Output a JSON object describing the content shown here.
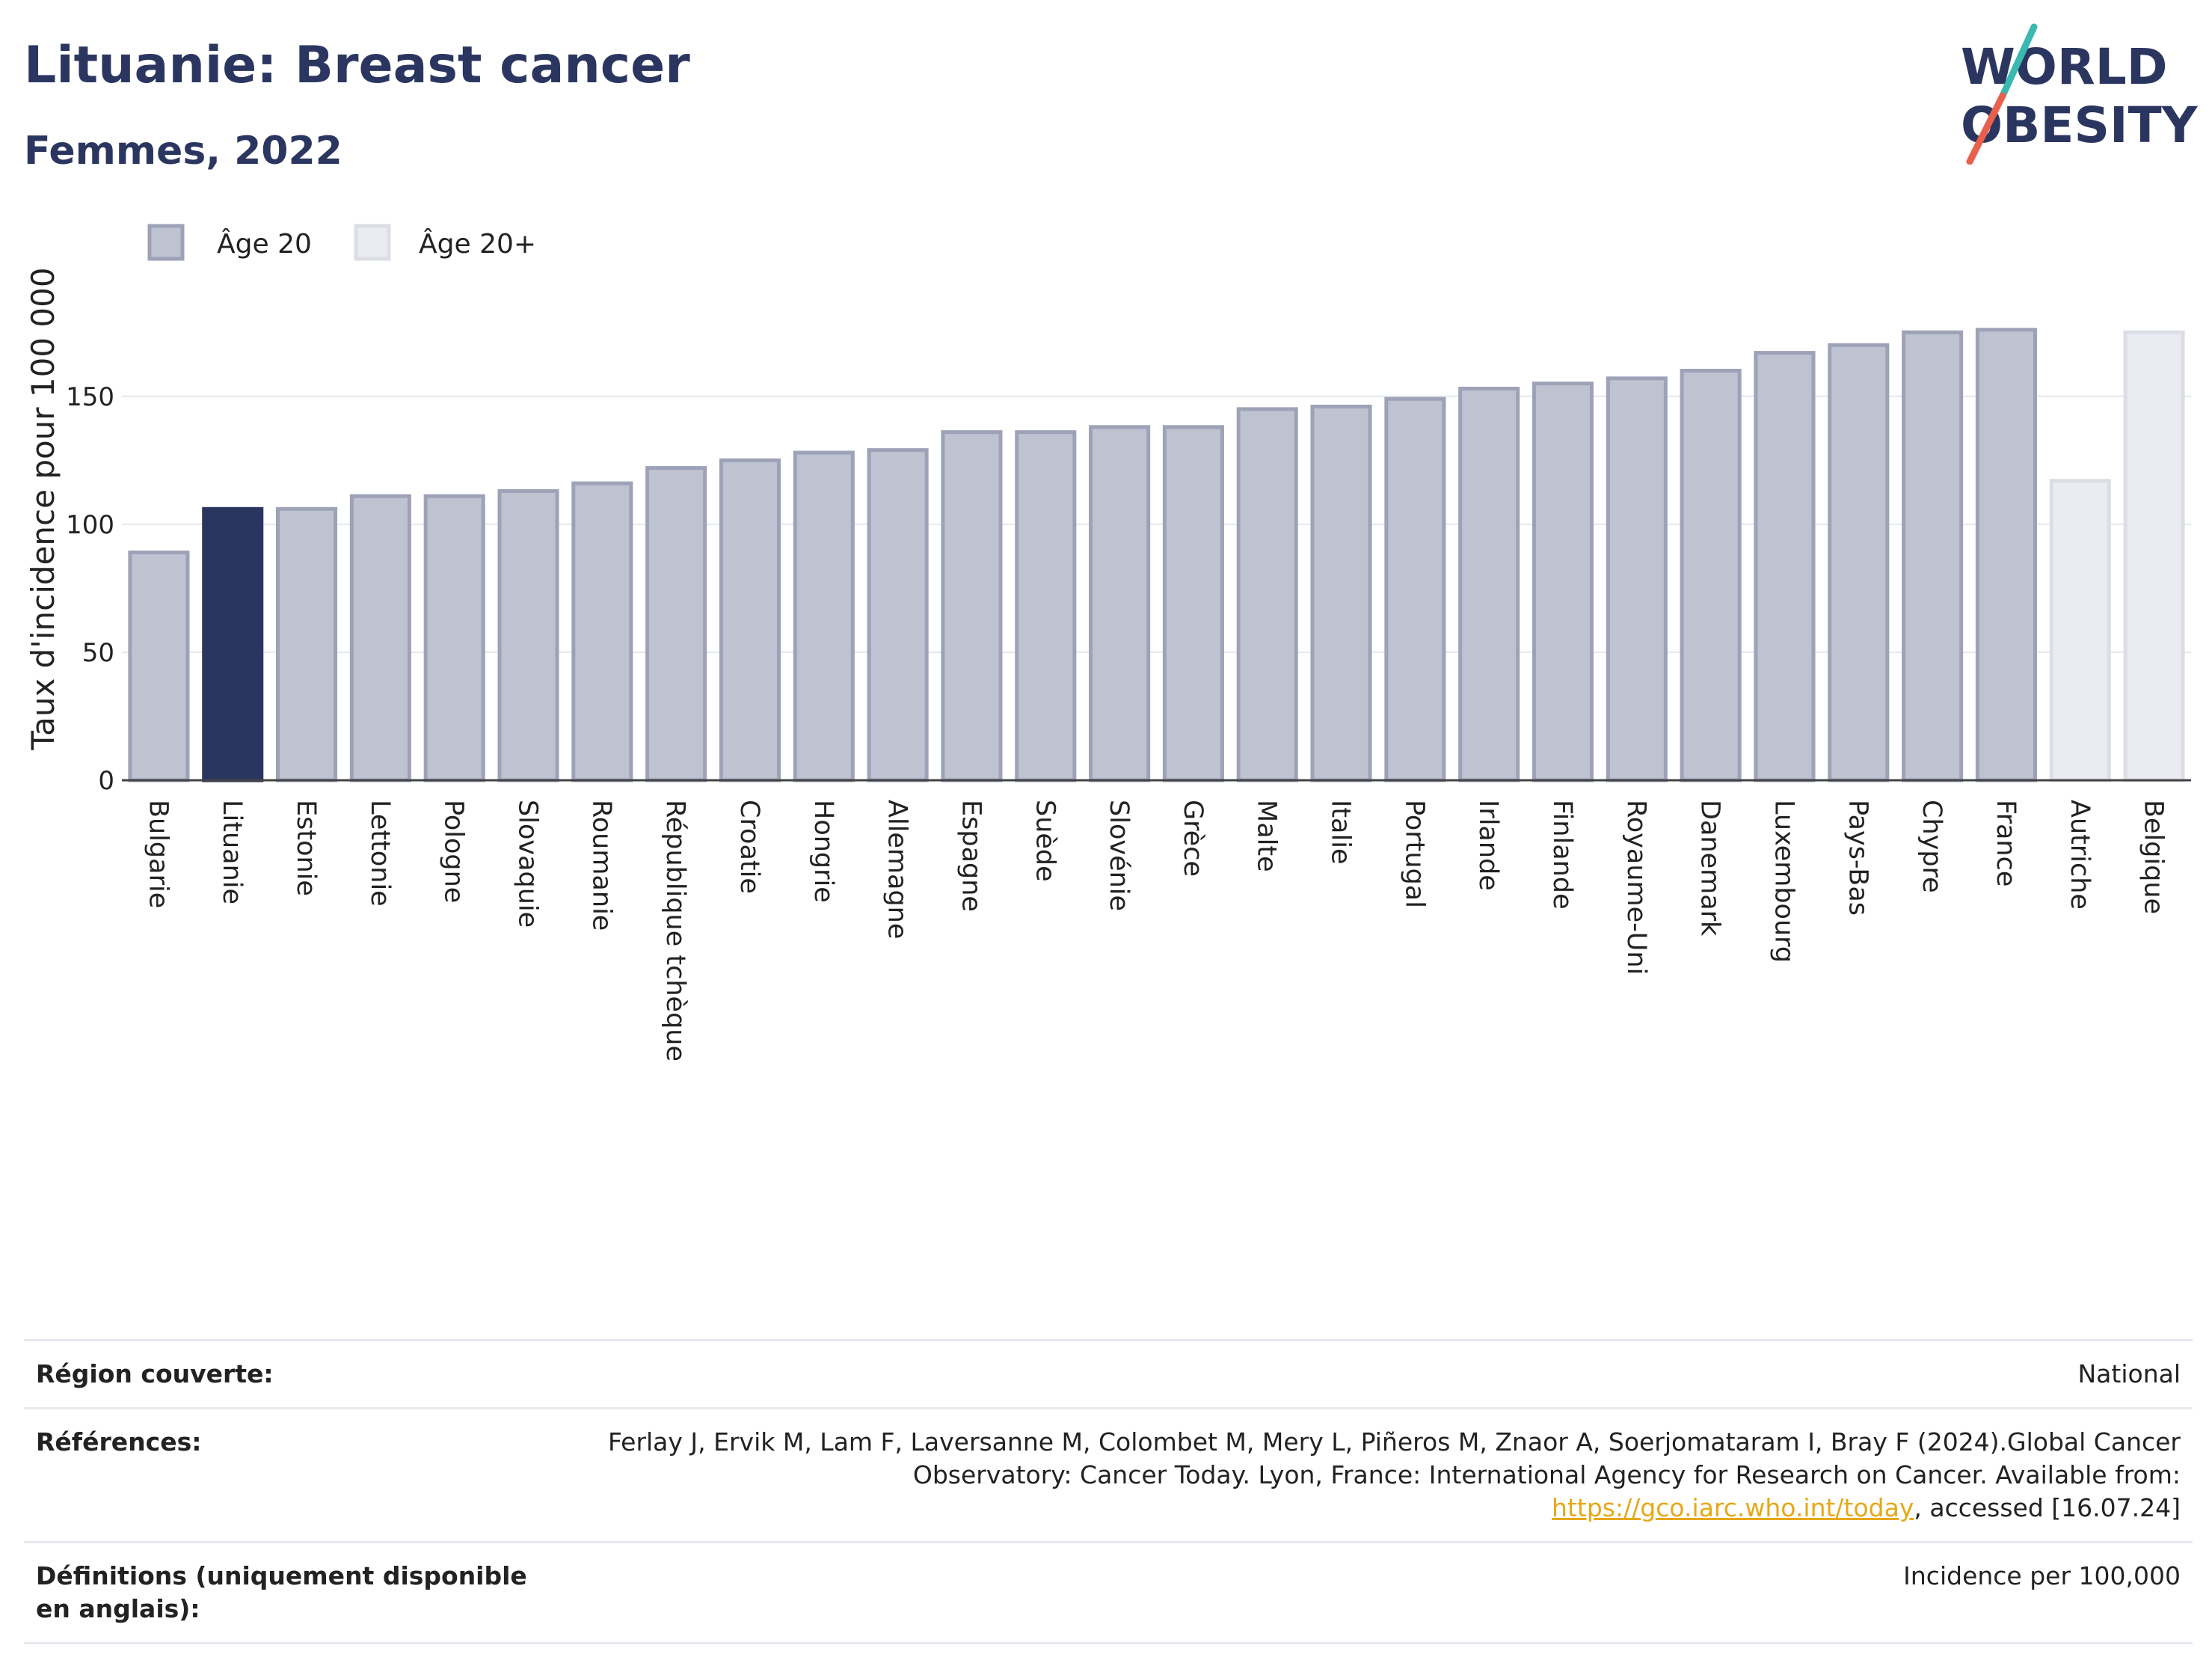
{
  "title": "Lituanie: Breast cancer",
  "subtitle": "Femmes, 2022",
  "logo": {
    "line1": "WORLD",
    "line2": "OBESITY"
  },
  "colors": {
    "age20_fill": "#bfc2d0",
    "age20_stroke": "#9da2b8",
    "highlight": "#2b3660",
    "age20plus_fill": "#ebecf1",
    "age20plus_stroke": "#dcdee6",
    "text_dark": "#2b3660",
    "link": "#e6a817"
  },
  "chart_data": {
    "type": "bar",
    "ylabel": "Taux d'incidence pour 100 000",
    "ylim": [
      0,
      185
    ],
    "yticks": [
      0,
      50,
      100,
      150
    ],
    "grid": true,
    "legend_position": "top-left",
    "highlight_category": "Lituanie",
    "legend": [
      {
        "name": "Âge 20",
        "series": "age20"
      },
      {
        "name": "Âge 20+",
        "series": "age20plus"
      }
    ],
    "categories": [
      "Bulgarie",
      "Lituanie",
      "Estonie",
      "Lettonie",
      "Pologne",
      "Slovaquie",
      "Roumanie",
      "République tchèque",
      "Croatie",
      "Hongrie",
      "Allemagne",
      "Espagne",
      "Suède",
      "Slovénie",
      "Grèce",
      "Malte",
      "Italie",
      "Portugal",
      "Irlande",
      "Finlande",
      "Royaume-Uni",
      "Danemark",
      "Luxembourg",
      "Pays-Bas",
      "Chypre",
      "France",
      "Autriche",
      "Belgique"
    ],
    "values": [
      89,
      106,
      106,
      111,
      111,
      113,
      116,
      122,
      125,
      128,
      129,
      136,
      136,
      138,
      138,
      145,
      146,
      149,
      153,
      155,
      157,
      160,
      167,
      170,
      175,
      176,
      117,
      175
    ],
    "series_of_category": [
      "age20",
      "age20",
      "age20",
      "age20",
      "age20",
      "age20",
      "age20",
      "age20",
      "age20",
      "age20",
      "age20",
      "age20",
      "age20",
      "age20",
      "age20",
      "age20",
      "age20",
      "age20",
      "age20",
      "age20",
      "age20",
      "age20",
      "age20",
      "age20",
      "age20",
      "age20",
      "age20plus",
      "age20plus"
    ]
  },
  "meta": {
    "region_label": "Région couverte:",
    "region_value": "National",
    "references_label": "Références:",
    "references_text_1": "Ferlay J, Ervik M, Lam F, Laversanne M, Colombet M, Mery L, Piñeros M, Znaor A, Soerjomataram I, Bray F (2024).Global Cancer Observatory: Cancer Today. Lyon, France: International Agency for Research on Cancer. Available from: ",
    "references_link": "https://gco.iarc.who.int/today",
    "references_text_2": ", accessed [16.07.24]",
    "definitions_label": "Définitions (uniquement disponible en anglais):",
    "definitions_value": "Incidence per 100,000"
  }
}
